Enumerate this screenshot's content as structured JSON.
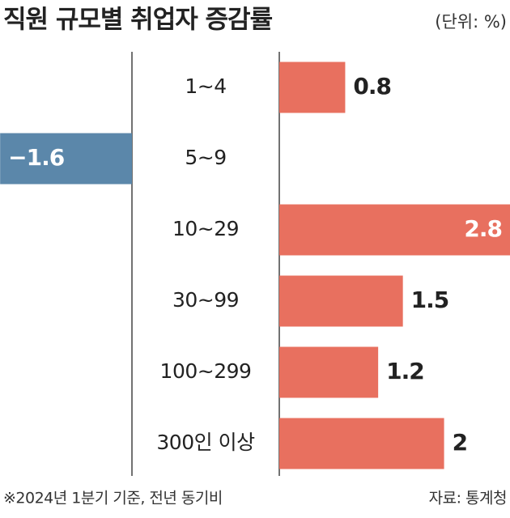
{
  "chart_data": {
    "type": "diverging-bar",
    "title": "직원 규모별 취업자 증감률",
    "unit_note": "(단위: %)",
    "categories": [
      "1~4",
      "5~9",
      "10~29",
      "30~99",
      "100~299",
      "300인 이상"
    ],
    "values": [
      0.8,
      -1.6,
      2.8,
      1.5,
      1.2,
      2
    ],
    "value_labels": [
      "0.8",
      "−1.6",
      "2.8",
      "1.5",
      "1.2",
      "2"
    ],
    "positive_color": "#e8705f",
    "negative_color": "#5b87aa",
    "footnote": "※2024년 1분기 기준, 전년 동기비",
    "source": "자료: 통계청"
  }
}
